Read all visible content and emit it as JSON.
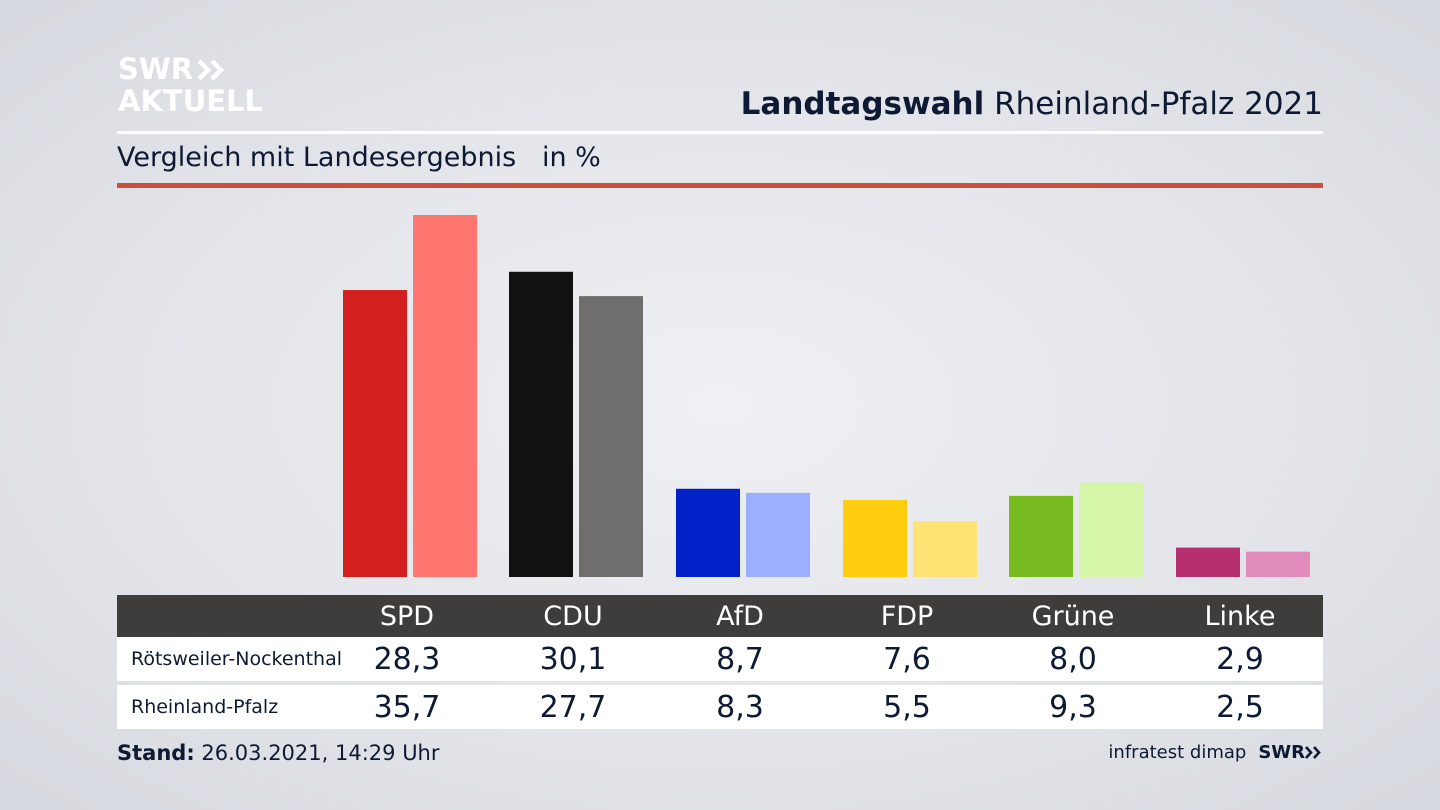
{
  "brand": {
    "line1": "SWR",
    "line2": "AKTUELL",
    "arrow_icon": "double-chevron-icon"
  },
  "header": {
    "title_bold": "Landtagswahl",
    "title_rest": "Rheinland-Pfalz 2021"
  },
  "subtitle": {
    "text": "Vergleich mit Landesergebnis",
    "unit": "in %"
  },
  "chart_data": {
    "type": "bar",
    "categories": [
      "SPD",
      "CDU",
      "AfD",
      "FDP",
      "Grüne",
      "Linke"
    ],
    "series": [
      {
        "name": "Rötsweiler-Nockenthal",
        "values": [
          28.3,
          30.1,
          8.7,
          7.6,
          8.0,
          2.9
        ],
        "colors": [
          "#d41f1f",
          "#111111",
          "#0020c8",
          "#ffcd0f",
          "#78bb20",
          "#b62f6e"
        ]
      },
      {
        "name": "Rheinland-Pfalz",
        "values": [
          35.7,
          27.7,
          8.3,
          5.5,
          9.3,
          2.5
        ],
        "colors": [
          "#ff7670",
          "#706e6c",
          "#9eaefe",
          "#fde374",
          "#d5f5a9",
          "#e08bbb"
        ]
      }
    ],
    "ylim": [
      0,
      36
    ]
  },
  "table": {
    "headers": [
      "SPD",
      "CDU",
      "AfD",
      "FDP",
      "Grüne",
      "Linke"
    ],
    "rows": [
      {
        "label": "Rötsweiler-Nockenthal",
        "values": [
          "28,3",
          "30,1",
          "8,7",
          "7,6",
          "8,0",
          "2,9"
        ]
      },
      {
        "label": "Rheinland-Pfalz",
        "values": [
          "35,7",
          "27,7",
          "8,3",
          "5,5",
          "9,3",
          "2,5"
        ]
      }
    ]
  },
  "footer": {
    "stand_label": "Stand:",
    "stand_value": "26.03.2021, 14:29 Uhr",
    "source": "infratest dimap",
    "brand": "SWR"
  }
}
